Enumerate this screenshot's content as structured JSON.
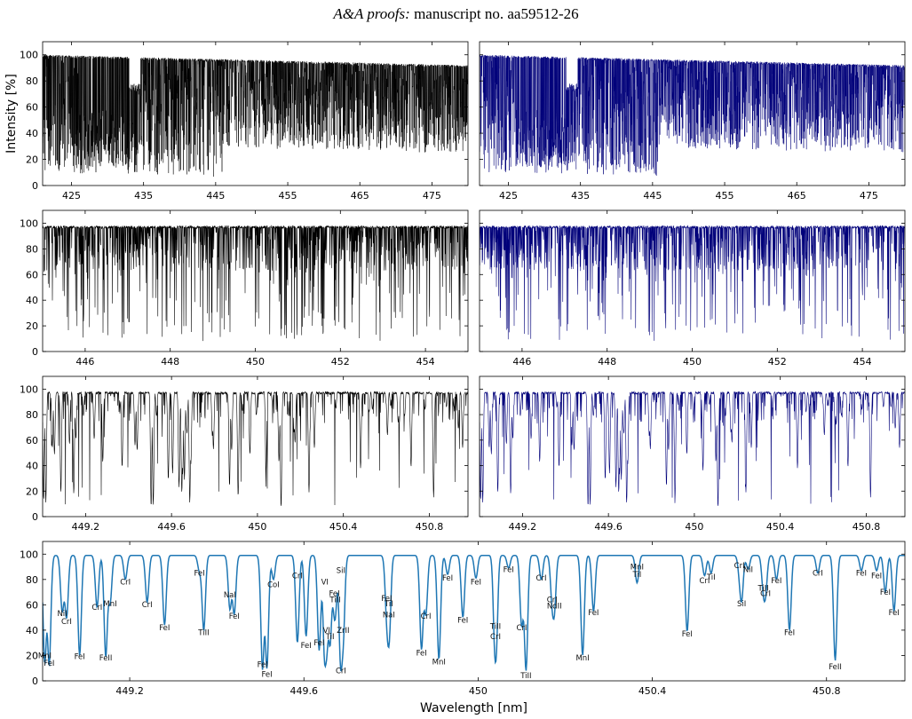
{
  "header": {
    "journal": "A&A proofs:",
    "manuscript": "manuscript no. aa59512-26"
  },
  "colors": {
    "left": "#000000",
    "right": "#00007a",
    "bottom": "#1f77b4"
  },
  "chart_data": [
    {
      "type": "line",
      "panel": "row1-left",
      "ylabel": "Intensity [%]",
      "xlim": [
        421,
        480
      ],
      "ylim": [
        0,
        110
      ],
      "xticks": [
        425,
        435,
        445,
        455,
        465,
        475
      ],
      "yticks": [
        0,
        20,
        40,
        60,
        80,
        100
      ],
      "color": "#000000",
      "density": "full-optical-range",
      "note_dip": [
        433.8,
        70
      ]
    },
    {
      "type": "line",
      "panel": "row1-right",
      "xlim": [
        421,
        480
      ],
      "ylim": [
        0,
        110
      ],
      "xticks": [
        425,
        435,
        445,
        455,
        465,
        475
      ],
      "yticks": [
        0,
        20,
        40,
        60,
        80,
        100
      ],
      "color": "#00007a"
    },
    {
      "type": "line",
      "panel": "row2-left",
      "xlim": [
        445,
        455
      ],
      "ylim": [
        0,
        110
      ],
      "xticks": [
        446,
        448,
        450,
        452,
        454
      ],
      "yticks": [
        0,
        20,
        40,
        60,
        80,
        100
      ],
      "color": "#000000"
    },
    {
      "type": "line",
      "panel": "row2-right",
      "xlim": [
        445,
        455
      ],
      "ylim": [
        0,
        110
      ],
      "xticks": [
        446,
        448,
        450,
        452,
        454
      ],
      "yticks": [
        0,
        20,
        40,
        60,
        80,
        100
      ],
      "color": "#00007a"
    },
    {
      "type": "line",
      "panel": "row3-left",
      "xlim": [
        449.0,
        450.98
      ],
      "ylim": [
        0,
        110
      ],
      "xticks": [
        449.2,
        449.6,
        450.0,
        450.4,
        450.8
      ],
      "yticks": [
        0,
        20,
        40,
        60,
        80,
        100
      ],
      "color": "#000000"
    },
    {
      "type": "line",
      "panel": "row3-right",
      "xlim": [
        449.0,
        450.98
      ],
      "ylim": [
        0,
        110
      ],
      "xticks": [
        449.2,
        449.6,
        450.0,
        450.4,
        450.8
      ],
      "yticks": [
        0,
        20,
        40,
        60,
        80,
        100
      ],
      "color": "#00007a"
    },
    {
      "type": "line",
      "panel": "row4-full",
      "xlabel": "Wavelength [nm]",
      "xlim": [
        449.0,
        450.98
      ],
      "ylim": [
        0,
        110
      ],
      "xticks": [
        449.2,
        449.6,
        450.0,
        450.4,
        450.8
      ],
      "yticks": [
        0,
        20,
        40,
        60,
        80,
        100
      ],
      "color": "#1f77b4",
      "lines": [
        {
          "x": 449.005,
          "depth": 14,
          "label": "MnI",
          "ly": 18
        },
        {
          "x": 449.015,
          "depth": 12,
          "label": "FeI",
          "ly": 12
        },
        {
          "x": 449.045,
          "depth": 55,
          "label": "NiI",
          "ly": 51
        },
        {
          "x": 449.055,
          "depth": 50,
          "label": "CrI",
          "ly": 45
        },
        {
          "x": 449.085,
          "depth": 20,
          "label": "FeI",
          "ly": 17
        },
        {
          "x": 449.125,
          "depth": 58,
          "label": "CrI",
          "ly": 56
        },
        {
          "x": 449.145,
          "depth": 19,
          "label": "FeII",
          "ly": 16
        },
        {
          "x": 449.155,
          "depth": 62,
          "label": "MnI",
          "ly": 59
        },
        {
          "x": 449.19,
          "depth": 80,
          "label": "CrI",
          "ly": 76
        },
        {
          "x": 449.24,
          "depth": 62,
          "label": "CrI",
          "ly": 58
        },
        {
          "x": 449.28,
          "depth": 44,
          "label": "FeI",
          "ly": 40
        },
        {
          "x": 449.36,
          "depth": 87,
          "label": "FeI",
          "ly": 83
        },
        {
          "x": 449.37,
          "depth": 40,
          "label": "TiII",
          "ly": 36
        },
        {
          "x": 449.43,
          "depth": 57,
          "label": "NaI",
          "ly": 66
        },
        {
          "x": 449.44,
          "depth": 53,
          "label": "FeI",
          "ly": 49
        },
        {
          "x": 449.505,
          "depth": 9,
          "label": "FeI",
          "ly": 11
        },
        {
          "x": 449.515,
          "depth": 10,
          "label": "FeI",
          "ly": 3
        },
        {
          "x": 449.53,
          "depth": 80,
          "label": "CoI",
          "ly": 74
        },
        {
          "x": 449.585,
          "depth": 30,
          "label": "CrI",
          "ly": 81
        },
        {
          "x": 449.605,
          "depth": 35,
          "label": "FeI",
          "ly": 26
        },
        {
          "x": 449.635,
          "depth": 24,
          "label": "FeI",
          "ly": 28
        },
        {
          "x": 449.648,
          "depth": 20,
          "label": "VI",
          "ly": 76
        },
        {
          "x": 449.652,
          "depth": 34,
          "label": "VI",
          "ly": 38
        },
        {
          "x": 449.66,
          "depth": 30,
          "label": "TiI",
          "ly": 33
        },
        {
          "x": 449.67,
          "depth": 70,
          "label": "FeI",
          "ly": 67
        },
        {
          "x": 449.672,
          "depth": 66,
          "label": "TiII",
          "ly": 62
        },
        {
          "x": 449.685,
          "depth": 82,
          "label": "SiI",
          "ly": 85
        },
        {
          "x": 449.69,
          "depth": 42,
          "label": "ZrII",
          "ly": 38
        },
        {
          "x": 449.685,
          "depth": 12,
          "label": "CrI",
          "ly": 6
        },
        {
          "x": 449.79,
          "depth": 64,
          "label": "FeI",
          "ly": 63
        },
        {
          "x": 449.795,
          "depth": 58,
          "label": "TiI",
          "ly": 59
        },
        {
          "x": 449.795,
          "depth": 54,
          "label": "NaI",
          "ly": 50
        },
        {
          "x": 449.87,
          "depth": 25,
          "label": "FeI",
          "ly": 20
        },
        {
          "x": 449.88,
          "depth": 53,
          "label": "CrI",
          "ly": 49
        },
        {
          "x": 449.91,
          "depth": 17,
          "label": "MnI",
          "ly": 13
        },
        {
          "x": 449.93,
          "depth": 84,
          "label": "FeI",
          "ly": 79
        },
        {
          "x": 449.965,
          "depth": 50,
          "label": "FeI",
          "ly": 46
        },
        {
          "x": 449.995,
          "depth": 81,
          "label": "FeI",
          "ly": 76
        },
        {
          "x": 450.04,
          "depth": 38,
          "label": "TiII",
          "ly": 41
        },
        {
          "x": 450.04,
          "depth": 37,
          "label": "CrI",
          "ly": 33
        },
        {
          "x": 450.07,
          "depth": 89,
          "label": "FeI",
          "ly": 86
        },
        {
          "x": 450.1,
          "depth": 44,
          "label": "CrI",
          "ly": 40
        },
        {
          "x": 450.11,
          "depth": 8,
          "label": "TiII",
          "ly": 2
        },
        {
          "x": 450.145,
          "depth": 80,
          "label": "CrI",
          "ly": 79
        },
        {
          "x": 450.17,
          "depth": 67,
          "label": "CrI",
          "ly": 62
        },
        {
          "x": 450.175,
          "depth": 59,
          "label": "NdII",
          "ly": 57
        },
        {
          "x": 450.24,
          "depth": 20,
          "label": "MnI",
          "ly": 16
        },
        {
          "x": 450.265,
          "depth": 55,
          "label": "FeI",
          "ly": 52
        },
        {
          "x": 450.365,
          "depth": 89,
          "label": "MnI",
          "ly": 88
        },
        {
          "x": 450.365,
          "depth": 86,
          "label": "TiI",
          "ly": 82
        },
        {
          "x": 450.48,
          "depth": 39,
          "label": "FeI",
          "ly": 35
        },
        {
          "x": 450.52,
          "depth": 83,
          "label": "CrI",
          "ly": 77
        },
        {
          "x": 450.535,
          "depth": 85,
          "label": "TiI",
          "ly": 80
        },
        {
          "x": 450.6,
          "depth": 89,
          "label": "CrI",
          "ly": 89
        },
        {
          "x": 450.62,
          "depth": 88,
          "label": "NiI",
          "ly": 86
        },
        {
          "x": 450.605,
          "depth": 65,
          "label": "SiI",
          "ly": 59
        },
        {
          "x": 450.655,
          "depth": 75,
          "label": "TiII",
          "ly": 71
        },
        {
          "x": 450.66,
          "depth": 73,
          "label": "CrI",
          "ly": 67
        },
        {
          "x": 450.685,
          "depth": 80,
          "label": "FeI",
          "ly": 77
        },
        {
          "x": 450.715,
          "depth": 40,
          "label": "FeI",
          "ly": 36
        },
        {
          "x": 450.78,
          "depth": 85,
          "label": "CrI",
          "ly": 83
        },
        {
          "x": 450.82,
          "depth": 16,
          "label": "FeII",
          "ly": 9
        },
        {
          "x": 450.88,
          "depth": 87,
          "label": "FeI",
          "ly": 83
        },
        {
          "x": 450.915,
          "depth": 87,
          "label": "FeI",
          "ly": 81
        },
        {
          "x": 450.935,
          "depth": 70,
          "label": "FeI",
          "ly": 68
        },
        {
          "x": 450.955,
          "depth": 55,
          "label": "FeI",
          "ly": 52
        }
      ]
    }
  ]
}
